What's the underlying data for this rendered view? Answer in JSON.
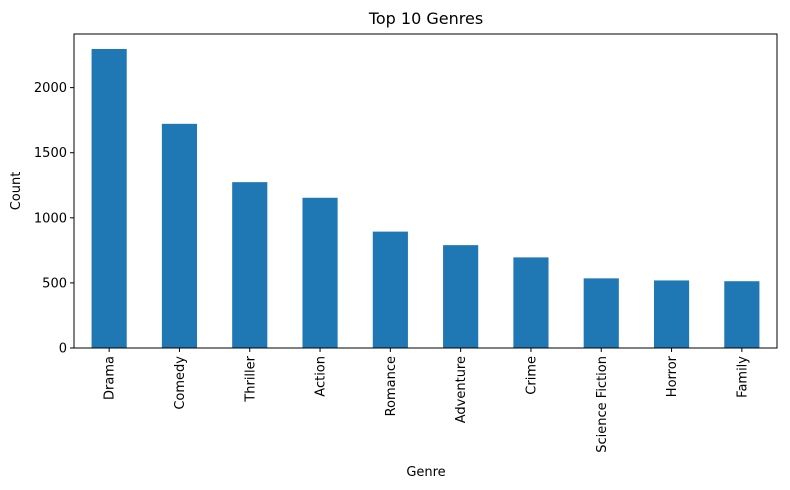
{
  "chart_data": {
    "type": "bar",
    "title": "Top 10 Genres",
    "xlabel": "Genre",
    "ylabel": "Count",
    "categories": [
      "Drama",
      "Comedy",
      "Thriller",
      "Action",
      "Romance",
      "Adventure",
      "Crime",
      "Science Fiction",
      "Horror",
      "Family"
    ],
    "values": [
      2297,
      1722,
      1274,
      1154,
      894,
      790,
      696,
      535,
      519,
      513
    ],
    "ylim": [
      0,
      2412
    ],
    "yticks": [
      0,
      500,
      1000,
      1500,
      2000
    ],
    "grid": false,
    "legend": "none",
    "bar_color": "#1f77b4",
    "x_tick_rotation": "vertical"
  }
}
